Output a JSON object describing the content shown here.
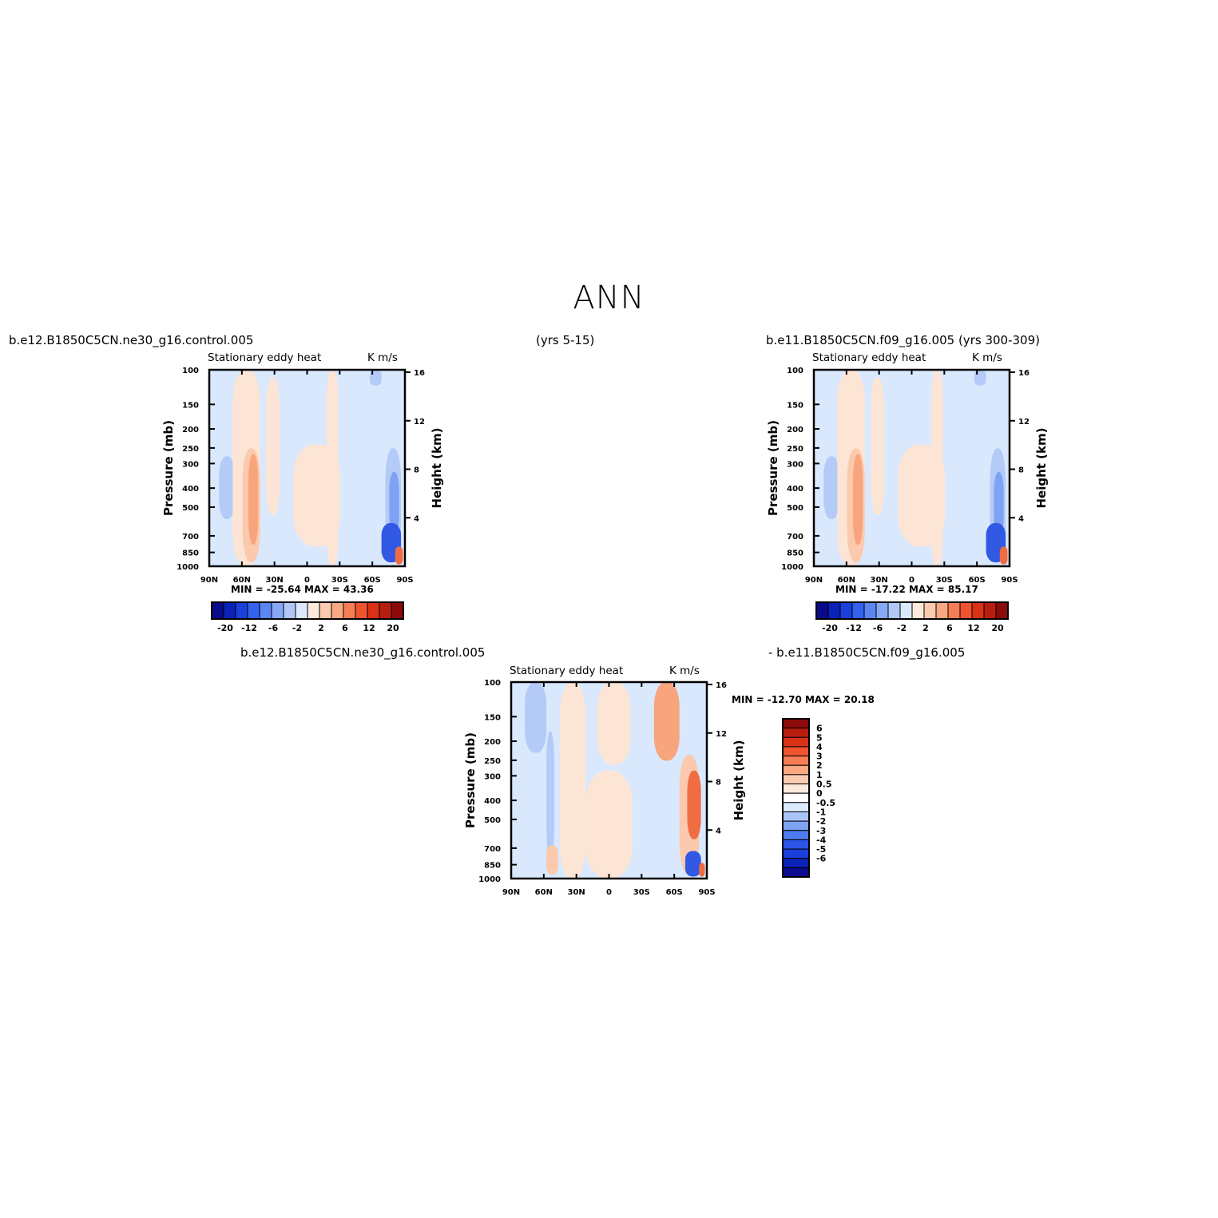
{
  "title": "ANN",
  "panel_top_left": {
    "case_name": "b.e12.B1850C5CN.ne30_g16.control.005",
    "years": "(yrs 5-15)",
    "var_label": "Stationary eddy heat",
    "units": "K m/s",
    "min_max": "MIN =  -25.64    MAX =    43.36"
  },
  "panel_top_right": {
    "case_name": "b.e11.B1850C5CN.f09_g16.005 (yrs 300-309)",
    "var_label": "Stationary eddy heat",
    "units": "K m/s",
    "min_max": "MIN =  -17.22    MAX =    85.17"
  },
  "panel_diff": {
    "case_a": "b.e12.B1850C5CN.ne30_g16.control.005",
    "case_b": "- b.e11.B1850C5CN.f09_g16.005",
    "var_label": "Stationary eddy heat",
    "units": "K m/s",
    "min_max": "MIN =  -12.70    MAX =    20.18"
  },
  "colors": {
    "abs_palette": [
      "#0a0a8c",
      "#0b22b8",
      "#1a3fdc",
      "#3462ee",
      "#5a86f2",
      "#87a8f4",
      "#b1c8f7",
      "#dce9fc",
      "#fde9dc",
      "#fbcbb0",
      "#f9a882",
      "#f67d55",
      "#ef5430",
      "#d93215",
      "#b81e0e",
      "#8c0a0a"
    ],
    "diff_palette": [
      "#0a0a8c",
      "#0b22b8",
      "#1a3fdc",
      "#2a55e6",
      "#4f7bf0",
      "#7ea2f4",
      "#aac4f8",
      "#dceafd",
      "#ffffff",
      "#fde9dc",
      "#fbcbb0",
      "#f9a882",
      "#f67d55",
      "#ef5430",
      "#d93215",
      "#b81e0e",
      "#8c0a0a"
    ],
    "faint_red": "#fde5d6",
    "light_red": "#fbc9ad",
    "med_red": "#f8a47c",
    "strong_red": "#f06c42",
    "faint_blue": "#d9e8fc",
    "light_blue": "#b4cbf8",
    "med_blue": "#7fa2f2",
    "strong_blue": "#3159e4"
  },
  "chart_data": [
    {
      "type": "heatmap",
      "title": "Stationary eddy heat",
      "units": "K m/s",
      "ylabel": "Pressure (mb)",
      "ylabel_right": "Height (km)",
      "x_ticks": [
        "90N",
        "60N",
        "30N",
        "0",
        "30S",
        "60S",
        "90S"
      ],
      "y_ticks": [
        100,
        150,
        200,
        250,
        300,
        400,
        500,
        700,
        850,
        1000
      ],
      "y_ticks_right": [
        16,
        12,
        8,
        4
      ],
      "colorbar_ticks": [
        "-20",
        "-12",
        "-6",
        "-2",
        "2",
        "6",
        "12",
        "20"
      ],
      "min": -25.64,
      "max": 43.36
    },
    {
      "type": "heatmap",
      "title": "Stationary eddy heat",
      "units": "K m/s",
      "ylabel": "Pressure (mb)",
      "ylabel_right": "Height (km)",
      "x_ticks": [
        "90N",
        "60N",
        "30N",
        "0",
        "30S",
        "60S",
        "90S"
      ],
      "y_ticks": [
        100,
        150,
        200,
        250,
        300,
        400,
        500,
        700,
        850,
        1000
      ],
      "y_ticks_right": [
        16,
        12,
        8,
        4
      ],
      "colorbar_ticks": [
        "-20",
        "-12",
        "-6",
        "-2",
        "2",
        "6",
        "12",
        "20"
      ],
      "min": -17.22,
      "max": 85.17
    },
    {
      "type": "heatmap",
      "title": "Stationary eddy heat",
      "units": "K m/s",
      "ylabel": "Pressure (mb)",
      "ylabel_right": "Height (km)",
      "x_ticks": [
        "90N",
        "60N",
        "30N",
        "0",
        "30S",
        "60S",
        "90S"
      ],
      "y_ticks": [
        100,
        150,
        200,
        250,
        300,
        400,
        500,
        700,
        850,
        1000
      ],
      "y_ticks_right": [
        16,
        12,
        8,
        4
      ],
      "colorbar_levels": [
        "6",
        "5",
        "4",
        "3",
        "2",
        "1",
        "0.5",
        "0",
        "-0.5",
        "-1",
        "-2",
        "-3",
        "-4",
        "-5",
        "-6"
      ],
      "min": -12.7,
      "max": 20.18
    }
  ]
}
